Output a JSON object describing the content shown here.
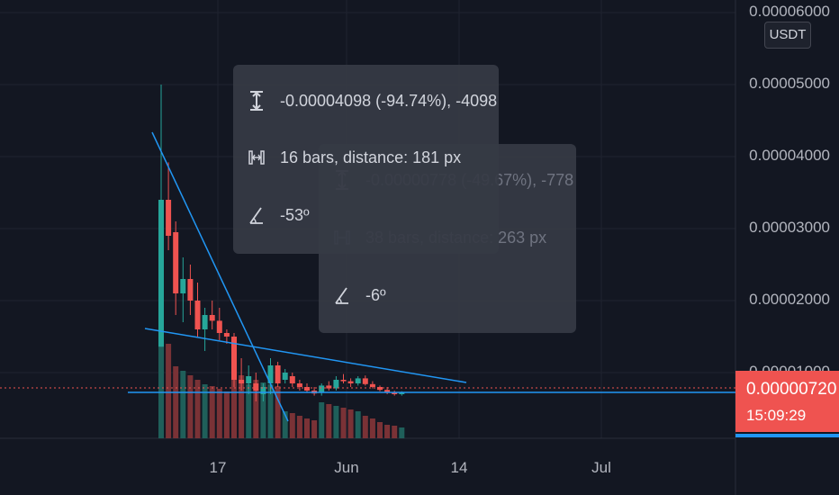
{
  "chart_data": {
    "type": "candlestick",
    "y_ticks": [
      "0.00006000",
      "0.00005000",
      "0.00004000",
      "0.00003000",
      "0.00002000",
      "0.00001000"
    ],
    "x_ticks": [
      "17",
      "Jun",
      "14",
      "Jul"
    ],
    "ylim": [
      5e-07,
      6.3e-06
    ],
    "candles": [
      {
        "o": 1.36e-05,
        "h": 5e-05,
        "l": 1.36e-05,
        "c": 3.4e-05
      },
      {
        "o": 3.4e-05,
        "h": 3.92e-05,
        "l": 2.7e-05,
        "c": 2.9e-05
      },
      {
        "o": 2.95e-05,
        "h": 3.1e-05,
        "l": 1.8e-05,
        "c": 2.1e-05
      },
      {
        "o": 2.1e-05,
        "h": 2.6e-05,
        "l": 1.7e-05,
        "c": 2.3e-05
      },
      {
        "o": 2.3e-05,
        "h": 2.5e-05,
        "l": 1.8e-05,
        "c": 2e-05
      },
      {
        "o": 2e-05,
        "h": 2.25e-05,
        "l": 1.5e-05,
        "c": 1.6e-05
      },
      {
        "o": 1.6e-05,
        "h": 1.9e-05,
        "l": 1.3e-05,
        "c": 1.8e-05
      },
      {
        "o": 1.8e-05,
        "h": 2e-05,
        "l": 1.6e-05,
        "c": 1.72e-05
      },
      {
        "o": 1.72e-05,
        "h": 1.9e-05,
        "l": 1.45e-05,
        "c": 1.55e-05
      },
      {
        "o": 1.55e-05,
        "h": 1.6e-05,
        "l": 1.4e-05,
        "c": 1.5e-05
      },
      {
        "o": 1.5e-05,
        "h": 1.55e-05,
        "l": 8e-06,
        "c": 9e-06
      },
      {
        "o": 9e-06,
        "h": 1.2e-05,
        "l": 7.5e-06,
        "c": 8.5e-06
      },
      {
        "o": 8.5e-06,
        "h": 1.1e-05,
        "l": 7e-06,
        "c": 9.5e-06
      },
      {
        "o": 8.5e-06,
        "h": 1e-05,
        "l": 6e-06,
        "c": 7.5e-06
      },
      {
        "o": 7e-06,
        "h": 8.5e-06,
        "l": 6e-06,
        "c": 8e-06
      },
      {
        "o": 8.5e-06,
        "h": 1.2e-05,
        "l": 7e-06,
        "c": 1.1e-05
      },
      {
        "o": 1.1e-05,
        "h": 1.15e-05,
        "l": 8e-06,
        "c": 8.5e-06
      },
      {
        "o": 9e-06,
        "h": 1.05e-05,
        "l": 8.5e-06,
        "c": 1e-05
      },
      {
        "o": 9.5e-06,
        "h": 1e-05,
        "l": 8e-06,
        "c": 8.5e-06
      },
      {
        "o": 8.5e-06,
        "h": 9e-06,
        "l": 7.5e-06,
        "c": 8e-06
      },
      {
        "o": 8e-06,
        "h": 8.5e-06,
        "l": 7.2e-06,
        "c": 7.5e-06
      },
      {
        "o": 7.5e-06,
        "h": 8e-06,
        "l": 6.8e-06,
        "c": 7.1e-06
      },
      {
        "o": 7.2e-06,
        "h": 8.5e-06,
        "l": 6.8e-06,
        "c": 8.2e-06
      },
      {
        "o": 8.2e-06,
        "h": 8.8e-06,
        "l": 7.5e-06,
        "c": 7.8e-06
      },
      {
        "o": 7.8e-06,
        "h": 9.5e-06,
        "l": 7.5e-06,
        "c": 9e-06
      },
      {
        "o": 9e-06,
        "h": 9.8e-06,
        "l": 8.5e-06,
        "c": 8.8e-06
      },
      {
        "o": 8.8e-06,
        "h": 9.2e-06,
        "l": 8e-06,
        "c": 8.5e-06
      },
      {
        "o": 8.5e-06,
        "h": 9.5e-06,
        "l": 8.2e-06,
        "c": 9.2e-06
      },
      {
        "o": 9.2e-06,
        "h": 9.6e-06,
        "l": 8.2e-06,
        "c": 8.4e-06
      },
      {
        "o": 8.4e-06,
        "h": 8.8e-06,
        "l": 7.8e-06,
        "c": 8e-06
      },
      {
        "o": 8e-06,
        "h": 8.2e-06,
        "l": 7.4e-06,
        "c": 7.6e-06
      },
      {
        "o": 7.6e-06,
        "h": 8e-06,
        "l": 7e-06,
        "c": 7.2e-06
      },
      {
        "o": 7.2e-06,
        "h": 7.5e-06,
        "l": 6.8e-06,
        "c": 7e-06
      },
      {
        "o": 7e-06,
        "h": 7.4e-06,
        "l": 6.8e-06,
        "c": 7.2e-06
      }
    ],
    "last_price": "0.00000720",
    "countdown": "15:09:29",
    "currency": "USDT",
    "colors": {
      "up": "#26a69a",
      "down": "#ef5350",
      "trendline": "#2196f3",
      "background": "#131722"
    }
  },
  "tooltip_front": {
    "price_range": "-0.00004098 (-94.74%), -4098",
    "bars_distance": "16 bars, distance: 181 px",
    "angle": "-53º",
    "icons": [
      "price-range-icon",
      "bars-range-icon",
      "angle-icon"
    ]
  },
  "tooltip_back": {
    "price_range": "-0.00000778 (-49.67%), -778",
    "bars_distance": "38 bars, distance: 263 px",
    "angle": "-6º",
    "icons": [
      "price-range-icon",
      "bars-range-icon",
      "angle-icon"
    ]
  }
}
